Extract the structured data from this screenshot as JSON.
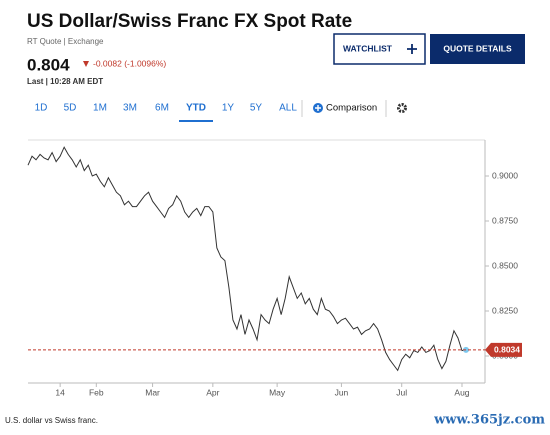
{
  "header": {
    "title": "US Dollar/Swiss Franc FX Spot Rate",
    "quote_source": "RT Quote | Exchange",
    "price": "0.804",
    "change": "-0.0082 (-1.0096%)",
    "last": "Last | 10:28 AM EDT"
  },
  "buttons": {
    "watchlist": "WATCHLIST",
    "quote_details": "QUOTE DETAILS"
  },
  "ranges": [
    "1D",
    "5D",
    "1M",
    "3M",
    "6M",
    "YTD",
    "1Y",
    "5Y",
    "ALL"
  ],
  "comparison": "Comparison",
  "caption": "U.S. dollar vs Swiss franc.",
  "watermark": "www.365jz.com",
  "chart_data": {
    "type": "line",
    "xlim": [
      0,
      109
    ],
    "xticks": [
      {
        "value": 8,
        "label": "14"
      },
      {
        "value": 17,
        "label": "Feb"
      },
      {
        "value": 31,
        "label": "Mar"
      },
      {
        "value": 46,
        "label": "Apr"
      },
      {
        "value": 62,
        "label": "May"
      },
      {
        "value": 78,
        "label": "Jun"
      },
      {
        "value": 93,
        "label": "Jul"
      },
      {
        "value": 108,
        "label": "Aug"
      }
    ],
    "ylim": [
      0.785,
      0.92
    ],
    "yticks": [
      {
        "value": 0.8,
        "label": "0.8000"
      },
      {
        "value": 0.825,
        "label": "0.8250"
      },
      {
        "value": 0.85,
        "label": "0.8500"
      },
      {
        "value": 0.875,
        "label": "0.8750"
      },
      {
        "value": 0.9,
        "label": "0.9000"
      }
    ],
    "series": [
      {
        "color": "#333333",
        "values": [
          0.906,
          0.911,
          0.909,
          0.912,
          0.91,
          0.909,
          0.913,
          0.908,
          0.911,
          0.916,
          0.912,
          0.909,
          0.905,
          0.909,
          0.903,
          0.906,
          0.9,
          0.901,
          0.897,
          0.894,
          0.899,
          0.895,
          0.891,
          0.889,
          0.884,
          0.886,
          0.883,
          0.883,
          0.886,
          0.889,
          0.891,
          0.886,
          0.883,
          0.88,
          0.877,
          0.882,
          0.884,
          0.889,
          0.886,
          0.88,
          0.877,
          0.88,
          0.882,
          0.878,
          0.883,
          0.883,
          0.88,
          0.86,
          0.855,
          0.853,
          0.838,
          0.82,
          0.815,
          0.823,
          0.812,
          0.82,
          0.815,
          0.809,
          0.823,
          0.82,
          0.818,
          0.826,
          0.832,
          0.823,
          0.832,
          0.844,
          0.838,
          0.832,
          0.835,
          0.829,
          0.832,
          0.826,
          0.823,
          0.832,
          0.826,
          0.825,
          0.822,
          0.818,
          0.82,
          0.821,
          0.818,
          0.815,
          0.816,
          0.812,
          0.814,
          0.815,
          0.818,
          0.815,
          0.809,
          0.802,
          0.798,
          0.795,
          0.792,
          0.798,
          0.801,
          0.799,
          0.803,
          0.802,
          0.805,
          0.802,
          0.803,
          0.806,
          0.798,
          0.793,
          0.797,
          0.806,
          0.814,
          0.81,
          0.803,
          0.8034
        ]
      }
    ],
    "last_value": 0.8034,
    "last_value_color": "#c0392b"
  }
}
